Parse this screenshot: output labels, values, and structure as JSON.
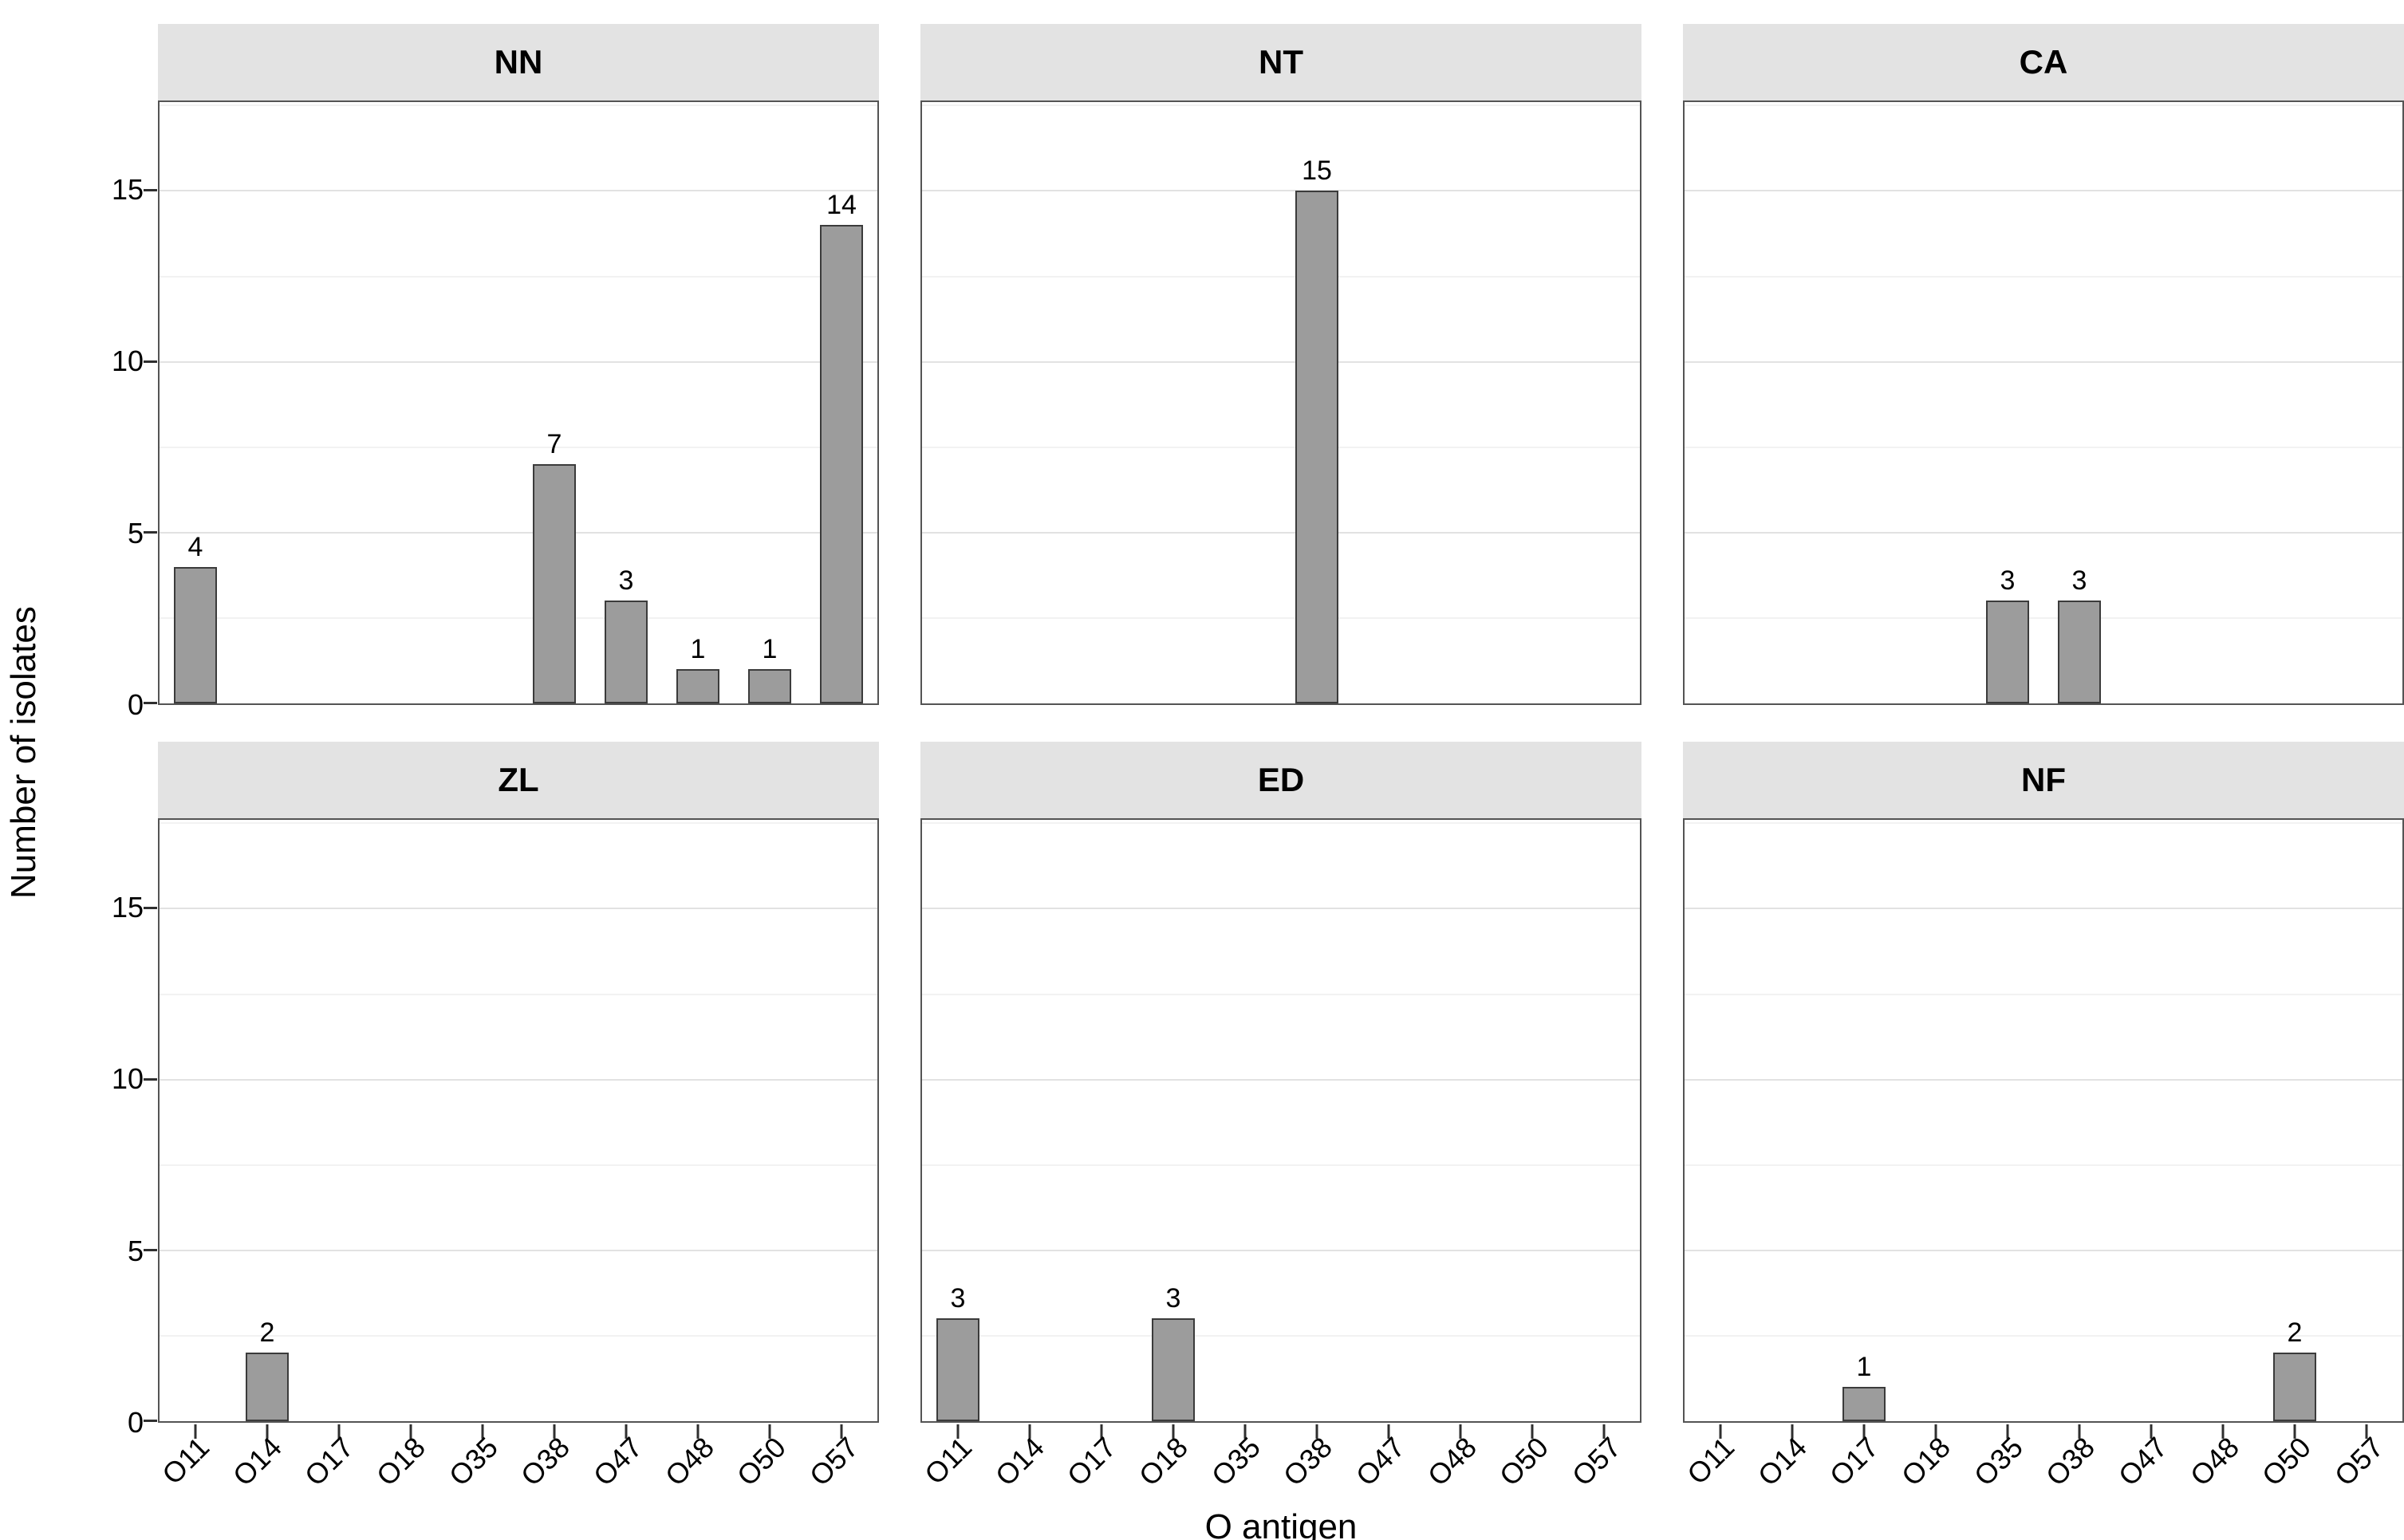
{
  "chart_data": {
    "type": "bar",
    "title": "",
    "xlabel": "O antigen",
    "ylabel": "Number of isolates",
    "categories": [
      "O11",
      "O14",
      "O17",
      "O18",
      "O35",
      "O38",
      "O47",
      "O48",
      "O50",
      "O57"
    ],
    "facet_layout": [
      [
        "NN",
        "NT",
        "CA"
      ],
      [
        "ZL",
        "ED",
        "NF"
      ]
    ],
    "series": [
      {
        "facet": "NN",
        "values": [
          4,
          0,
          0,
          0,
          0,
          7,
          3,
          1,
          1,
          14
        ]
      },
      {
        "facet": "NT",
        "values": [
          0,
          0,
          0,
          0,
          0,
          15,
          0,
          0,
          0,
          0
        ]
      },
      {
        "facet": "CA",
        "values": [
          0,
          0,
          0,
          0,
          3,
          3,
          0,
          0,
          0,
          0
        ]
      },
      {
        "facet": "ZL",
        "values": [
          0,
          2,
          0,
          0,
          0,
          0,
          0,
          0,
          0,
          0
        ]
      },
      {
        "facet": "ED",
        "values": [
          3,
          0,
          0,
          3,
          0,
          0,
          0,
          0,
          0,
          0
        ]
      },
      {
        "facet": "NF",
        "values": [
          0,
          0,
          1,
          0,
          0,
          0,
          0,
          0,
          2,
          0
        ]
      }
    ],
    "ylim": [
      0,
      17.6
    ],
    "yticks_major": [
      0,
      5,
      10,
      15
    ],
    "yticks_minor": [
      2.5,
      7.5,
      12.5,
      17.5
    ],
    "grid": "horizontal-only",
    "legend": "none",
    "value_labels": true,
    "colors": {
      "bar_fill": "#9c9c9c",
      "bar_border": "#3b3b3b",
      "strip_fill": "#e3e3e3",
      "panel_border": "#545454",
      "grid_major": "#e2e2e2",
      "grid_minor": "#f2f2f2",
      "tick": "#2f2f2f",
      "text": "#000000"
    }
  }
}
